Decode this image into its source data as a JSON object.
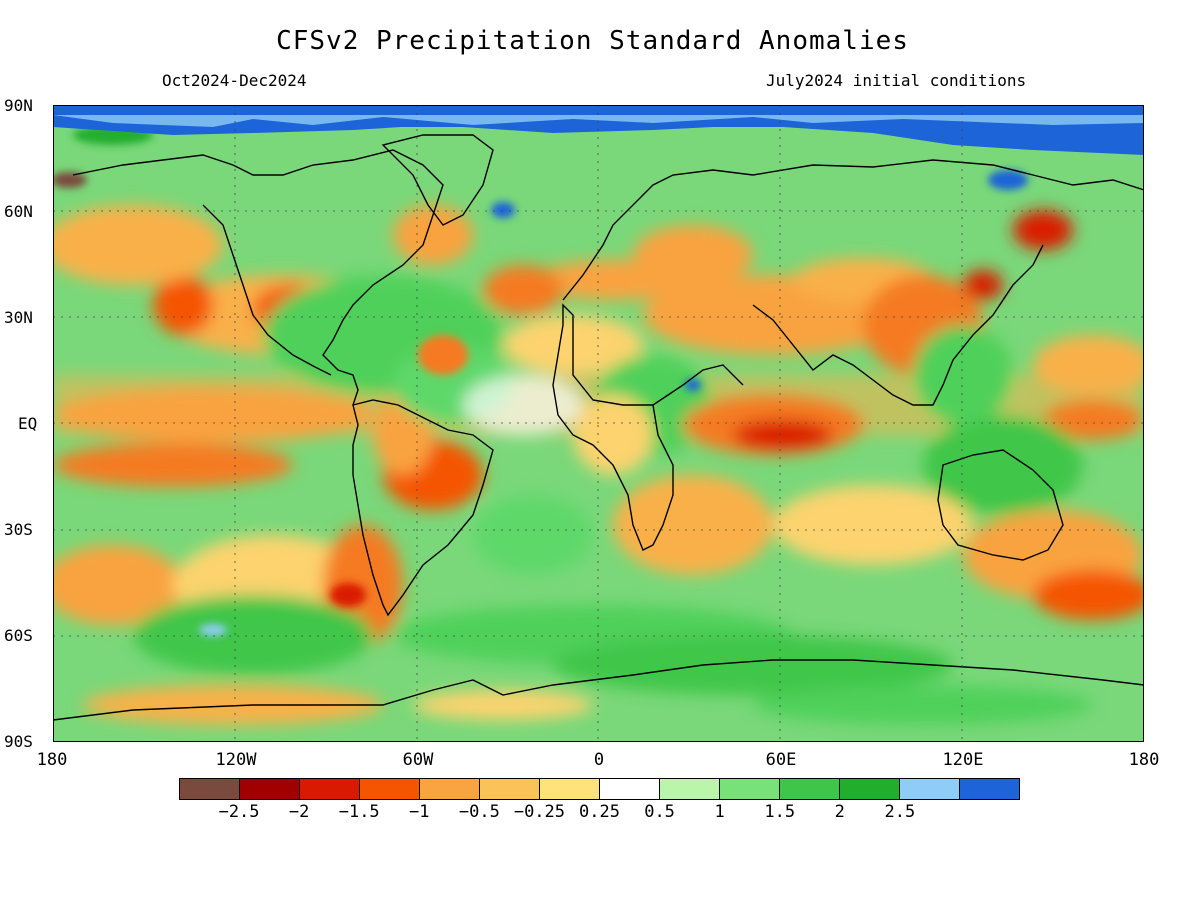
{
  "title": "CFSv2 Precipitation Standard Anomalies",
  "period": "Oct2024-Dec2024",
  "initial_conditions": "July2024 initial conditions",
  "lat_labels": [
    "90N",
    "60N",
    "30N",
    "EQ",
    "30S",
    "60S",
    "90S"
  ],
  "lon_labels": [
    "180",
    "120W",
    "60W",
    "0",
    "60E",
    "120E",
    "180"
  ],
  "legend": {
    "colors": [
      "#7a4a3c",
      "#a10000",
      "#d91a00",
      "#f55500",
      "#f9a341",
      "#fbc25a",
      "#fde37a",
      "#ffffff",
      "#b9f5ab",
      "#78e278",
      "#3fc64a",
      "#22ad2d",
      "#8ecdf7",
      "#1c64d8"
    ],
    "labels": [
      "−2.5",
      "−2",
      "−1.5",
      "−1",
      "−0.5",
      "−0.25",
      "0.25",
      "0.5",
      "1",
      "1.5",
      "2",
      "2.5"
    ]
  }
}
